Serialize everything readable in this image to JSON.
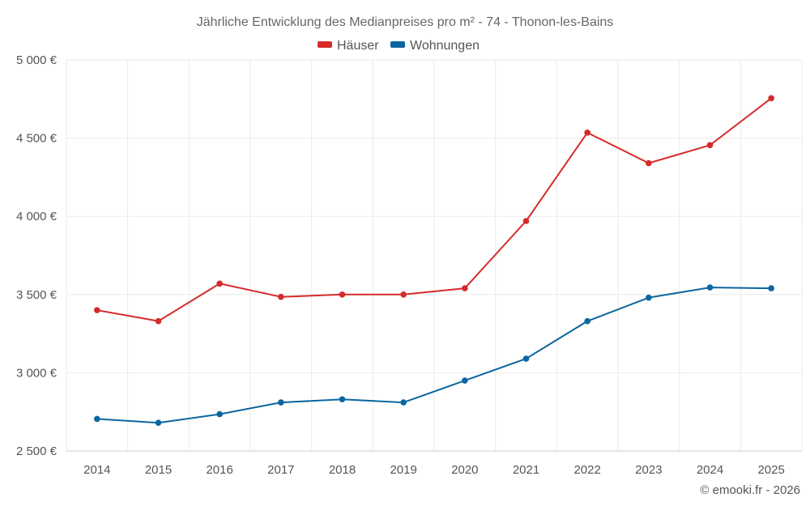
{
  "chart_data": {
    "type": "line",
    "title": "Jährliche Entwicklung des Medianpreises pro m² - 74 - Thonon-les-Bains",
    "categories": [
      "2014",
      "2015",
      "2016",
      "2017",
      "2018",
      "2019",
      "2020",
      "2021",
      "2022",
      "2023",
      "2024",
      "2025"
    ],
    "series": [
      {
        "name": "Häuser",
        "color": "#d52b2b",
        "values": [
          3400,
          3330,
          3570,
          3485,
          3500,
          3500,
          3540,
          3970,
          4535,
          4340,
          4455,
          4755
        ]
      },
      {
        "name": "Wohnungen",
        "color": "#0b66a0",
        "values": [
          2705,
          2680,
          2735,
          2810,
          2830,
          2810,
          2950,
          3090,
          3330,
          3480,
          3545,
          3540
        ]
      }
    ],
    "ylim": [
      2500,
      5000
    ],
    "yticks": [
      2500,
      3000,
      3500,
      4000,
      4500,
      5000
    ],
    "ytick_labels": [
      "2 500 €",
      "3 000 €",
      "3 500 €",
      "4 000 €",
      "4 500 €",
      "5 000 €"
    ],
    "legend_position": "top-center",
    "grid": true
  },
  "credit": "© emooki.fr - 2026"
}
